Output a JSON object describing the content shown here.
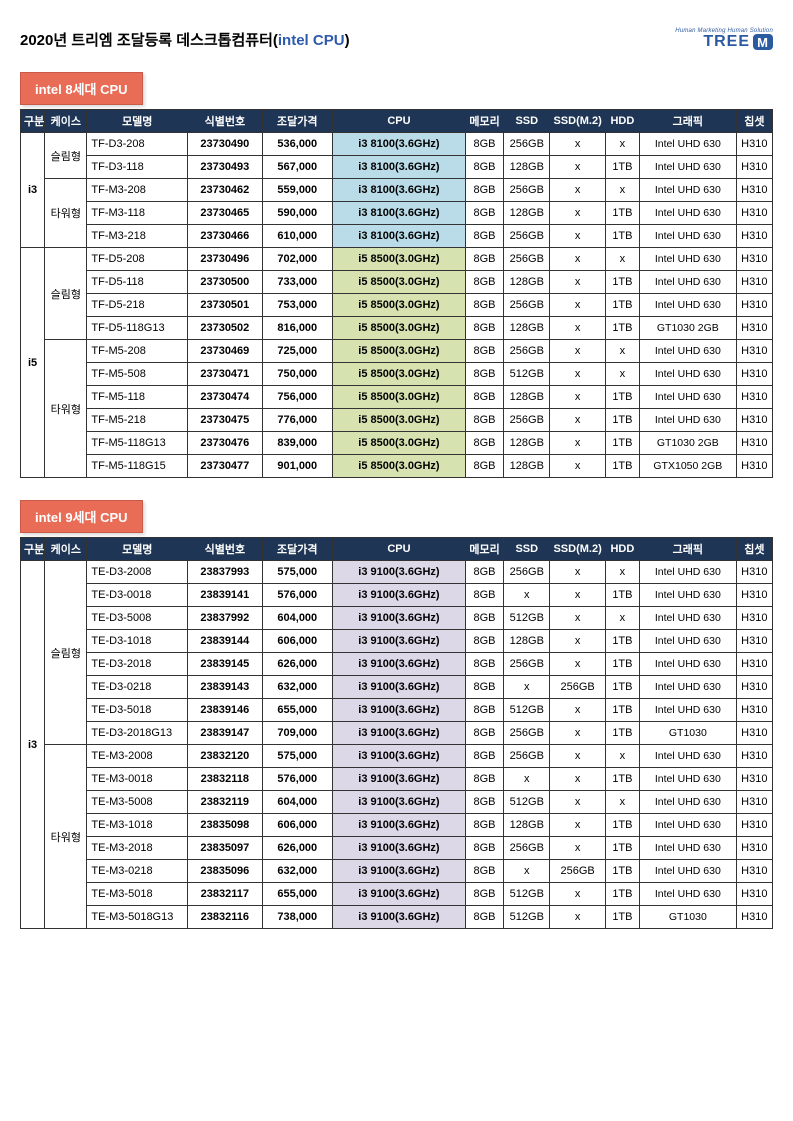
{
  "page_title_a": "2020년 트리엠 조달등록 데스크톱컴퓨터(",
  "page_title_b": "intel CPU",
  "page_title_c": ")",
  "logo_tag": "Human Marketing Human Solution",
  "logo_text": "TREE",
  "logo_m": "M",
  "section8": "intel 8세대 CPU",
  "section9": "intel 9세대 CPU",
  "headers": {
    "gb": "구분",
    "case": "케이스",
    "model": "모델명",
    "id": "식별번호",
    "price": "조달가격",
    "cpu": "CPU",
    "mem": "메모리",
    "ssd": "SSD",
    "ssdm": "SSD(M.2)",
    "hdd": "HDD",
    "gpu": "그래픽",
    "chip": "칩셋"
  },
  "colors": {
    "header_bg": "#1e3555",
    "section_bg": "#e96c57",
    "cpu_i3_8": "#b9dce8",
    "cpu_i5_8": "#d6e3b1",
    "cpu_i3_9": "#dcd8e8",
    "title_highlight": "#2e5aac",
    "logo_color": "#2c5aa0"
  },
  "table8": {
    "groups": [
      {
        "gb": "i3",
        "cases": [
          {
            "case": "슬림형",
            "rows": [
              {
                "model": "TF-D3-208",
                "id": "23730490",
                "price": "536,000",
                "cpu": "i3 8100(3.6GHz)",
                "cpuClass": "cpu-i3",
                "mem": "8GB",
                "ssd": "256GB",
                "ssdm": "x",
                "hdd": "x",
                "gpu": "Intel UHD 630",
                "chip": "H310"
              },
              {
                "model": "TF-D3-118",
                "id": "23730493",
                "price": "567,000",
                "cpu": "i3 8100(3.6GHz)",
                "cpuClass": "cpu-i3",
                "mem": "8GB",
                "ssd": "128GB",
                "ssdm": "x",
                "hdd": "1TB",
                "gpu": "Intel UHD 630",
                "chip": "H310"
              }
            ]
          },
          {
            "case": "타워형",
            "rows": [
              {
                "model": "TF-M3-208",
                "id": "23730462",
                "price": "559,000",
                "cpu": "i3 8100(3.6GHz)",
                "cpuClass": "cpu-i3",
                "mem": "8GB",
                "ssd": "256GB",
                "ssdm": "x",
                "hdd": "x",
                "gpu": "Intel UHD 630",
                "chip": "H310"
              },
              {
                "model": "TF-M3-118",
                "id": "23730465",
                "price": "590,000",
                "cpu": "i3 8100(3.6GHz)",
                "cpuClass": "cpu-i3",
                "mem": "8GB",
                "ssd": "128GB",
                "ssdm": "x",
                "hdd": "1TB",
                "gpu": "Intel UHD 630",
                "chip": "H310"
              },
              {
                "model": "TF-M3-218",
                "id": "23730466",
                "price": "610,000",
                "cpu": "i3 8100(3.6GHz)",
                "cpuClass": "cpu-i3",
                "mem": "8GB",
                "ssd": "256GB",
                "ssdm": "x",
                "hdd": "1TB",
                "gpu": "Intel UHD 630",
                "chip": "H310"
              }
            ]
          }
        ]
      },
      {
        "gb": "i5",
        "cases": [
          {
            "case": "슬림형",
            "rows": [
              {
                "model": "TF-D5-208",
                "id": "23730496",
                "price": "702,000",
                "cpu": "i5 8500(3.0GHz)",
                "cpuClass": "cpu-i5",
                "mem": "8GB",
                "ssd": "256GB",
                "ssdm": "x",
                "hdd": "x",
                "gpu": "Intel UHD 630",
                "chip": "H310"
              },
              {
                "model": "TF-D5-118",
                "id": "23730500",
                "price": "733,000",
                "cpu": "i5 8500(3.0GHz)",
                "cpuClass": "cpu-i5",
                "mem": "8GB",
                "ssd": "128GB",
                "ssdm": "x",
                "hdd": "1TB",
                "gpu": "Intel UHD 630",
                "chip": "H310"
              },
              {
                "model": "TF-D5-218",
                "id": "23730501",
                "price": "753,000",
                "cpu": "i5 8500(3.0GHz)",
                "cpuClass": "cpu-i5",
                "mem": "8GB",
                "ssd": "256GB",
                "ssdm": "x",
                "hdd": "1TB",
                "gpu": "Intel UHD 630",
                "chip": "H310"
              },
              {
                "model": "TF-D5-118G13",
                "id": "23730502",
                "price": "816,000",
                "cpu": "i5 8500(3.0GHz)",
                "cpuClass": "cpu-i5",
                "mem": "8GB",
                "ssd": "128GB",
                "ssdm": "x",
                "hdd": "1TB",
                "gpu": "GT1030 2GB",
                "chip": "H310"
              }
            ]
          },
          {
            "case": "타워형",
            "rows": [
              {
                "model": "TF-M5-208",
                "id": "23730469",
                "price": "725,000",
                "cpu": "i5 8500(3.0GHz)",
                "cpuClass": "cpu-i5",
                "mem": "8GB",
                "ssd": "256GB",
                "ssdm": "x",
                "hdd": "x",
                "gpu": "Intel UHD 630",
                "chip": "H310"
              },
              {
                "model": "TF-M5-508",
                "id": "23730471",
                "price": "750,000",
                "cpu": "i5 8500(3.0GHz)",
                "cpuClass": "cpu-i5",
                "mem": "8GB",
                "ssd": "512GB",
                "ssdm": "x",
                "hdd": "x",
                "gpu": "Intel UHD 630",
                "chip": "H310"
              },
              {
                "model": "TF-M5-118",
                "id": "23730474",
                "price": "756,000",
                "cpu": "i5 8500(3.0GHz)",
                "cpuClass": "cpu-i5",
                "mem": "8GB",
                "ssd": "128GB",
                "ssdm": "x",
                "hdd": "1TB",
                "gpu": "Intel UHD 630",
                "chip": "H310"
              },
              {
                "model": "TF-M5-218",
                "id": "23730475",
                "price": "776,000",
                "cpu": "i5 8500(3.0GHz)",
                "cpuClass": "cpu-i5",
                "mem": "8GB",
                "ssd": "256GB",
                "ssdm": "x",
                "hdd": "1TB",
                "gpu": "Intel UHD 630",
                "chip": "H310"
              },
              {
                "model": "TF-M5-118G13",
                "id": "23730476",
                "price": "839,000",
                "cpu": "i5 8500(3.0GHz)",
                "cpuClass": "cpu-i5",
                "mem": "8GB",
                "ssd": "128GB",
                "ssdm": "x",
                "hdd": "1TB",
                "gpu": "GT1030 2GB",
                "chip": "H310"
              },
              {
                "model": "TF-M5-118G15",
                "id": "23730477",
                "price": "901,000",
                "cpu": "i5 8500(3.0GHz)",
                "cpuClass": "cpu-i5",
                "mem": "8GB",
                "ssd": "128GB",
                "ssdm": "x",
                "hdd": "1TB",
                "gpu": "GTX1050 2GB",
                "chip": "H310"
              }
            ]
          }
        ]
      }
    ]
  },
  "table9": {
    "groups": [
      {
        "gb": "i3",
        "cases": [
          {
            "case": "슬림형",
            "rows": [
              {
                "model": "TE-D3-2008",
                "id": "23837993",
                "price": "575,000",
                "cpu": "i3 9100(3.6GHz)",
                "cpuClass": "cpu-i3g9",
                "mem": "8GB",
                "ssd": "256GB",
                "ssdm": "x",
                "hdd": "x",
                "gpu": "Intel UHD 630",
                "chip": "H310"
              },
              {
                "model": "TE-D3-0018",
                "id": "23839141",
                "price": "576,000",
                "cpu": "i3 9100(3.6GHz)",
                "cpuClass": "cpu-i3g9",
                "mem": "8GB",
                "ssd": "x",
                "ssdm": "x",
                "hdd": "1TB",
                "gpu": "Intel UHD 630",
                "chip": "H310"
              },
              {
                "model": "TE-D3-5008",
                "id": "23837992",
                "price": "604,000",
                "cpu": "i3 9100(3.6GHz)",
                "cpuClass": "cpu-i3g9",
                "mem": "8GB",
                "ssd": "512GB",
                "ssdm": "x",
                "hdd": "x",
                "gpu": "Intel UHD 630",
                "chip": "H310"
              },
              {
                "model": "TE-D3-1018",
                "id": "23839144",
                "price": "606,000",
                "cpu": "i3 9100(3.6GHz)",
                "cpuClass": "cpu-i3g9",
                "mem": "8GB",
                "ssd": "128GB",
                "ssdm": "x",
                "hdd": "1TB",
                "gpu": "Intel UHD 630",
                "chip": "H310"
              },
              {
                "model": "TE-D3-2018",
                "id": "23839145",
                "price": "626,000",
                "cpu": "i3 9100(3.6GHz)",
                "cpuClass": "cpu-i3g9",
                "mem": "8GB",
                "ssd": "256GB",
                "ssdm": "x",
                "hdd": "1TB",
                "gpu": "Intel UHD 630",
                "chip": "H310"
              },
              {
                "model": "TE-D3-0218",
                "id": "23839143",
                "price": "632,000",
                "cpu": "i3 9100(3.6GHz)",
                "cpuClass": "cpu-i3g9",
                "mem": "8GB",
                "ssd": "x",
                "ssdm": "256GB",
                "hdd": "1TB",
                "gpu": "Intel UHD 630",
                "chip": "H310"
              },
              {
                "model": "TE-D3-5018",
                "id": "23839146",
                "price": "655,000",
                "cpu": "i3 9100(3.6GHz)",
                "cpuClass": "cpu-i3g9",
                "mem": "8GB",
                "ssd": "512GB",
                "ssdm": "x",
                "hdd": "1TB",
                "gpu": "Intel UHD 630",
                "chip": "H310"
              },
              {
                "model": "TE-D3-2018G13",
                "id": "23839147",
                "price": "709,000",
                "cpu": "i3 9100(3.6GHz)",
                "cpuClass": "cpu-i3g9",
                "mem": "8GB",
                "ssd": "256GB",
                "ssdm": "x",
                "hdd": "1TB",
                "gpu": "GT1030",
                "chip": "H310"
              }
            ]
          },
          {
            "case": "타워형",
            "rows": [
              {
                "model": "TE-M3-2008",
                "id": "23832120",
                "price": "575,000",
                "cpu": "i3 9100(3.6GHz)",
                "cpuClass": "cpu-i3g9",
                "mem": "8GB",
                "ssd": "256GB",
                "ssdm": "x",
                "hdd": "x",
                "gpu": "Intel UHD 630",
                "chip": "H310"
              },
              {
                "model": "TE-M3-0018",
                "id": "23832118",
                "price": "576,000",
                "cpu": "i3 9100(3.6GHz)",
                "cpuClass": "cpu-i3g9",
                "mem": "8GB",
                "ssd": "x",
                "ssdm": "x",
                "hdd": "1TB",
                "gpu": "Intel UHD 630",
                "chip": "H310"
              },
              {
                "model": "TE-M3-5008",
                "id": "23832119",
                "price": "604,000",
                "cpu": "i3 9100(3.6GHz)",
                "cpuClass": "cpu-i3g9",
                "mem": "8GB",
                "ssd": "512GB",
                "ssdm": "x",
                "hdd": "x",
                "gpu": "Intel UHD 630",
                "chip": "H310"
              },
              {
                "model": "TE-M3-1018",
                "id": "23835098",
                "price": "606,000",
                "cpu": "i3 9100(3.6GHz)",
                "cpuClass": "cpu-i3g9",
                "mem": "8GB",
                "ssd": "128GB",
                "ssdm": "x",
                "hdd": "1TB",
                "gpu": "Intel UHD 630",
                "chip": "H310"
              },
              {
                "model": "TE-M3-2018",
                "id": "23835097",
                "price": "626,000",
                "cpu": "i3 9100(3.6GHz)",
                "cpuClass": "cpu-i3g9",
                "mem": "8GB",
                "ssd": "256GB",
                "ssdm": "x",
                "hdd": "1TB",
                "gpu": "Intel UHD 630",
                "chip": "H310"
              },
              {
                "model": "TE-M3-0218",
                "id": "23835096",
                "price": "632,000",
                "cpu": "i3 9100(3.6GHz)",
                "cpuClass": "cpu-i3g9",
                "mem": "8GB",
                "ssd": "x",
                "ssdm": "256GB",
                "hdd": "1TB",
                "gpu": "Intel UHD 630",
                "chip": "H310"
              },
              {
                "model": "TE-M3-5018",
                "id": "23832117",
                "price": "655,000",
                "cpu": "i3 9100(3.6GHz)",
                "cpuClass": "cpu-i3g9",
                "mem": "8GB",
                "ssd": "512GB",
                "ssdm": "x",
                "hdd": "1TB",
                "gpu": "Intel UHD 630",
                "chip": "H310"
              },
              {
                "model": "TE-M3-5018G13",
                "id": "23832116",
                "price": "738,000",
                "cpu": "i3 9100(3.6GHz)",
                "cpuClass": "cpu-i3g9",
                "mem": "8GB",
                "ssd": "512GB",
                "ssdm": "x",
                "hdd": "1TB",
                "gpu": "GT1030",
                "chip": "H310"
              }
            ]
          }
        ]
      }
    ]
  }
}
